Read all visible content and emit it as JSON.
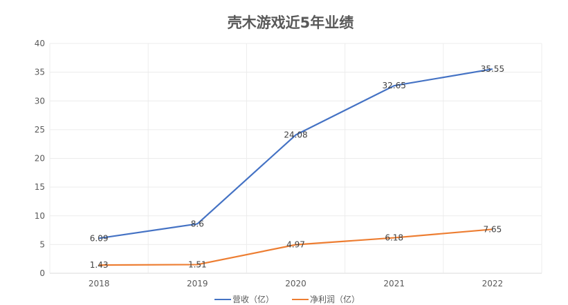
{
  "chart_data": {
    "type": "line",
    "title": "壳木游戏近5年业绩",
    "xlabel": "",
    "ylabel": "",
    "categories": [
      "2018",
      "2019",
      "2020",
      "2021",
      "2022"
    ],
    "ylim": [
      0,
      40
    ],
    "yticks": [
      0,
      5,
      10,
      15,
      20,
      25,
      30,
      35,
      40
    ],
    "grid": true,
    "legend_position": "bottom",
    "series": [
      {
        "name": "营收（亿）",
        "color": "#4472C4",
        "values": [
          6.09,
          8.6,
          24.08,
          32.65,
          35.55
        ],
        "labels": [
          "6.09",
          "8.6",
          "24.08",
          "32.65",
          "35.55"
        ]
      },
      {
        "name": "净利润（亿）",
        "color": "#ED7D31",
        "values": [
          1.43,
          1.51,
          4.97,
          6.18,
          7.65
        ],
        "labels": [
          "1.43",
          "1.51",
          "4.97",
          "6.18",
          "7.65"
        ]
      }
    ]
  }
}
